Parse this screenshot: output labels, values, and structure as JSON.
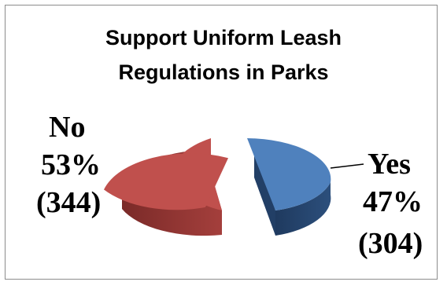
{
  "chart_data": {
    "type": "pie",
    "title_lines": [
      "Support Uniform Leash",
      "Regulations in Parks"
    ],
    "slices": [
      {
        "name": "Yes",
        "percent_label": "47%",
        "count_label": "(304)",
        "value": 304,
        "color": "#4f81bd"
      },
      {
        "name": "No",
        "percent_label": "53%",
        "count_label": "(344)",
        "value": 344,
        "color": "#c0504d"
      }
    ],
    "exploded": true,
    "three_d": true
  }
}
